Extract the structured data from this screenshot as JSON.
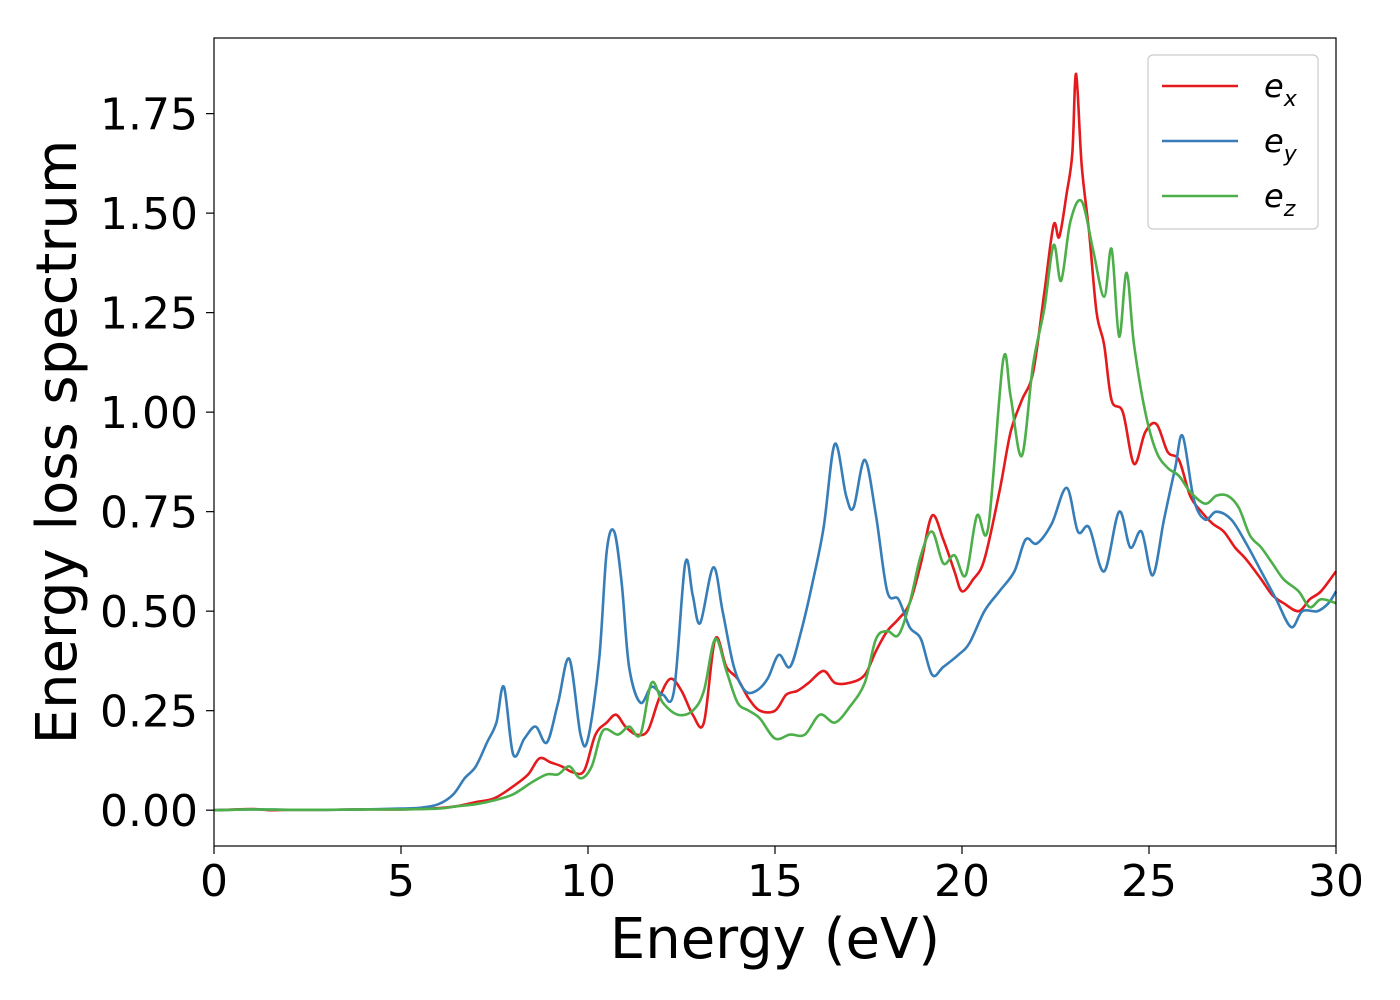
{
  "chart_data": {
    "type": "line",
    "title": "",
    "xlabel": "Energy (eV)",
    "ylabel": "Energy loss spectrum",
    "xlim": [
      0,
      30
    ],
    "ylim": [
      -0.09,
      1.94
    ],
    "xticks": [
      0,
      5,
      10,
      15,
      20,
      25,
      30
    ],
    "xtick_labels": [
      "0",
      "5",
      "10",
      "15",
      "20",
      "25",
      "30"
    ],
    "yticks": [
      0.0,
      0.25,
      0.5,
      0.75,
      1.0,
      1.25,
      1.5,
      1.75
    ],
    "ytick_labels": [
      "0.00",
      "0.25",
      "0.50",
      "0.75",
      "1.00",
      "1.25",
      "1.50",
      "1.75"
    ],
    "grid": false,
    "legend_position": "top-right",
    "series": [
      {
        "name": "e",
        "subscript": "x",
        "color": "#e41a1c",
        "points": [
          [
            0,
            0
          ],
          [
            1,
            0.003
          ],
          [
            1.5,
            0
          ],
          [
            2,
            0.001
          ],
          [
            3,
            0.001
          ],
          [
            4,
            0.002
          ],
          [
            5,
            0.002
          ],
          [
            6,
            0.005
          ],
          [
            6.5,
            0.01
          ],
          [
            7,
            0.02
          ],
          [
            7.5,
            0.03
          ],
          [
            8,
            0.06
          ],
          [
            8.4,
            0.09
          ],
          [
            8.7,
            0.13
          ],
          [
            9,
            0.12
          ],
          [
            9.3,
            0.11
          ],
          [
            9.6,
            0.095
          ],
          [
            9.9,
            0.1
          ],
          [
            10.2,
            0.19
          ],
          [
            10.5,
            0.22
          ],
          [
            10.75,
            0.24
          ],
          [
            11,
            0.21
          ],
          [
            11.3,
            0.19
          ],
          [
            11.6,
            0.2
          ],
          [
            11.9,
            0.28
          ],
          [
            12.2,
            0.33
          ],
          [
            12.5,
            0.3
          ],
          [
            12.8,
            0.24
          ],
          [
            13.1,
            0.22
          ],
          [
            13.4,
            0.43
          ],
          [
            13.7,
            0.36
          ],
          [
            14,
            0.33
          ],
          [
            14.3,
            0.28
          ],
          [
            14.6,
            0.25
          ],
          [
            15,
            0.25
          ],
          [
            15.3,
            0.29
          ],
          [
            15.6,
            0.3
          ],
          [
            15.9,
            0.32
          ],
          [
            16.3,
            0.35
          ],
          [
            16.6,
            0.32
          ],
          [
            17,
            0.32
          ],
          [
            17.4,
            0.34
          ],
          [
            17.7,
            0.4
          ],
          [
            18,
            0.45
          ],
          [
            18.3,
            0.48
          ],
          [
            18.6,
            0.52
          ],
          [
            18.9,
            0.62
          ],
          [
            19.2,
            0.74
          ],
          [
            19.5,
            0.68
          ],
          [
            19.8,
            0.6
          ],
          [
            20,
            0.55
          ],
          [
            20.3,
            0.58
          ],
          [
            20.6,
            0.63
          ],
          [
            21,
            0.8
          ],
          [
            21.3,
            0.95
          ],
          [
            21.6,
            1.03
          ],
          [
            21.9,
            1.1
          ],
          [
            22.2,
            1.3
          ],
          [
            22.45,
            1.47
          ],
          [
            22.6,
            1.44
          ],
          [
            22.8,
            1.55
          ],
          [
            22.95,
            1.65
          ],
          [
            23.05,
            1.85
          ],
          [
            23.2,
            1.62
          ],
          [
            23.4,
            1.45
          ],
          [
            23.6,
            1.25
          ],
          [
            23.8,
            1.17
          ],
          [
            24,
            1.03
          ],
          [
            24.3,
            1.0
          ],
          [
            24.6,
            0.87
          ],
          [
            24.9,
            0.95
          ],
          [
            25.2,
            0.97
          ],
          [
            25.5,
            0.9
          ],
          [
            25.8,
            0.88
          ],
          [
            26.1,
            0.79
          ],
          [
            26.4,
            0.75
          ],
          [
            26.7,
            0.72
          ],
          [
            27,
            0.7
          ],
          [
            27.3,
            0.66
          ],
          [
            27.6,
            0.63
          ],
          [
            28,
            0.58
          ],
          [
            28.3,
            0.54
          ],
          [
            28.6,
            0.52
          ],
          [
            29,
            0.5
          ],
          [
            29.3,
            0.53
          ],
          [
            29.6,
            0.55
          ],
          [
            30,
            0.6
          ]
        ]
      },
      {
        "name": "e",
        "subscript": "y",
        "color": "#377eb8",
        "points": [
          [
            0,
            0
          ],
          [
            1,
            0.002
          ],
          [
            2,
            0.001
          ],
          [
            3,
            0.001
          ],
          [
            4,
            0.002
          ],
          [
            5,
            0.004
          ],
          [
            5.5,
            0.006
          ],
          [
            6,
            0.015
          ],
          [
            6.4,
            0.04
          ],
          [
            6.7,
            0.08
          ],
          [
            7,
            0.11
          ],
          [
            7.3,
            0.17
          ],
          [
            7.55,
            0.22
          ],
          [
            7.75,
            0.31
          ],
          [
            8,
            0.14
          ],
          [
            8.3,
            0.18
          ],
          [
            8.6,
            0.21
          ],
          [
            8.9,
            0.17
          ],
          [
            9.2,
            0.27
          ],
          [
            9.5,
            0.38
          ],
          [
            9.8,
            0.19
          ],
          [
            10,
            0.18
          ],
          [
            10.3,
            0.38
          ],
          [
            10.5,
            0.65
          ],
          [
            10.7,
            0.7
          ],
          [
            10.9,
            0.57
          ],
          [
            11.1,
            0.36
          ],
          [
            11.4,
            0.27
          ],
          [
            11.7,
            0.31
          ],
          [
            12,
            0.29
          ],
          [
            12.3,
            0.3
          ],
          [
            12.6,
            0.62
          ],
          [
            12.8,
            0.54
          ],
          [
            13,
            0.47
          ],
          [
            13.35,
            0.61
          ],
          [
            13.6,
            0.5
          ],
          [
            13.9,
            0.36
          ],
          [
            14.2,
            0.3
          ],
          [
            14.5,
            0.3
          ],
          [
            14.8,
            0.33
          ],
          [
            15.1,
            0.39
          ],
          [
            15.4,
            0.36
          ],
          [
            15.7,
            0.45
          ],
          [
            16,
            0.57
          ],
          [
            16.3,
            0.71
          ],
          [
            16.6,
            0.92
          ],
          [
            16.9,
            0.79
          ],
          [
            17.1,
            0.76
          ],
          [
            17.4,
            0.88
          ],
          [
            17.7,
            0.74
          ],
          [
            18,
            0.55
          ],
          [
            18.3,
            0.53
          ],
          [
            18.6,
            0.46
          ],
          [
            18.9,
            0.43
          ],
          [
            19.2,
            0.34
          ],
          [
            19.5,
            0.36
          ],
          [
            19.9,
            0.39
          ],
          [
            20.2,
            0.42
          ],
          [
            20.6,
            0.5
          ],
          [
            21,
            0.55
          ],
          [
            21.4,
            0.6
          ],
          [
            21.7,
            0.68
          ],
          [
            22,
            0.67
          ],
          [
            22.4,
            0.72
          ],
          [
            22.8,
            0.81
          ],
          [
            23.1,
            0.7
          ],
          [
            23.4,
            0.71
          ],
          [
            23.8,
            0.6
          ],
          [
            24.2,
            0.75
          ],
          [
            24.5,
            0.66
          ],
          [
            24.8,
            0.7
          ],
          [
            25.1,
            0.59
          ],
          [
            25.4,
            0.73
          ],
          [
            25.7,
            0.86
          ],
          [
            25.9,
            0.94
          ],
          [
            26.2,
            0.78
          ],
          [
            26.5,
            0.73
          ],
          [
            26.8,
            0.75
          ],
          [
            27.2,
            0.73
          ],
          [
            27.6,
            0.67
          ],
          [
            28,
            0.6
          ],
          [
            28.4,
            0.53
          ],
          [
            28.8,
            0.46
          ],
          [
            29.1,
            0.5
          ],
          [
            29.5,
            0.5
          ],
          [
            29.8,
            0.52
          ],
          [
            30,
            0.55
          ]
        ]
      },
      {
        "name": "e",
        "subscript": "z",
        "color": "#4daf4a",
        "points": [
          [
            0,
            0
          ],
          [
            1,
            0.002
          ],
          [
            2,
            0.001
          ],
          [
            3,
            0.001
          ],
          [
            4,
            0.002
          ],
          [
            5,
            0.002
          ],
          [
            6,
            0.004
          ],
          [
            6.5,
            0.01
          ],
          [
            7,
            0.015
          ],
          [
            7.5,
            0.025
          ],
          [
            8,
            0.04
          ],
          [
            8.5,
            0.07
          ],
          [
            8.9,
            0.09
          ],
          [
            9.2,
            0.09
          ],
          [
            9.5,
            0.11
          ],
          [
            9.8,
            0.08
          ],
          [
            10.1,
            0.11
          ],
          [
            10.4,
            0.2
          ],
          [
            10.8,
            0.19
          ],
          [
            11.1,
            0.21
          ],
          [
            11.4,
            0.19
          ],
          [
            11.7,
            0.32
          ],
          [
            12,
            0.27
          ],
          [
            12.4,
            0.24
          ],
          [
            12.8,
            0.25
          ],
          [
            13.1,
            0.3
          ],
          [
            13.4,
            0.43
          ],
          [
            13.7,
            0.35
          ],
          [
            14,
            0.27
          ],
          [
            14.3,
            0.25
          ],
          [
            14.6,
            0.23
          ],
          [
            15,
            0.18
          ],
          [
            15.4,
            0.19
          ],
          [
            15.8,
            0.19
          ],
          [
            16.2,
            0.24
          ],
          [
            16.6,
            0.22
          ],
          [
            17,
            0.26
          ],
          [
            17.4,
            0.32
          ],
          [
            17.7,
            0.43
          ],
          [
            18,
            0.45
          ],
          [
            18.3,
            0.44
          ],
          [
            18.6,
            0.52
          ],
          [
            18.9,
            0.64
          ],
          [
            19.2,
            0.7
          ],
          [
            19.5,
            0.62
          ],
          [
            19.8,
            0.64
          ],
          [
            20.1,
            0.59
          ],
          [
            20.4,
            0.74
          ],
          [
            20.7,
            0.71
          ],
          [
            21.1,
            1.13
          ],
          [
            21.3,
            1.04
          ],
          [
            21.6,
            0.89
          ],
          [
            21.9,
            1.12
          ],
          [
            22.2,
            1.26
          ],
          [
            22.45,
            1.42
          ],
          [
            22.65,
            1.33
          ],
          [
            22.9,
            1.48
          ],
          [
            23.2,
            1.53
          ],
          [
            23.5,
            1.41
          ],
          [
            23.8,
            1.29
          ],
          [
            24,
            1.41
          ],
          [
            24.2,
            1.19
          ],
          [
            24.4,
            1.35
          ],
          [
            24.6,
            1.17
          ],
          [
            24.9,
            1.0
          ],
          [
            25.2,
            0.9
          ],
          [
            25.5,
            0.86
          ],
          [
            25.8,
            0.84
          ],
          [
            26.1,
            0.8
          ],
          [
            26.5,
            0.77
          ],
          [
            26.8,
            0.79
          ],
          [
            27.1,
            0.79
          ],
          [
            27.4,
            0.76
          ],
          [
            27.7,
            0.69
          ],
          [
            28,
            0.66
          ],
          [
            28.3,
            0.62
          ],
          [
            28.6,
            0.58
          ],
          [
            29,
            0.55
          ],
          [
            29.3,
            0.51
          ],
          [
            29.6,
            0.53
          ],
          [
            30,
            0.52
          ]
        ]
      }
    ]
  }
}
